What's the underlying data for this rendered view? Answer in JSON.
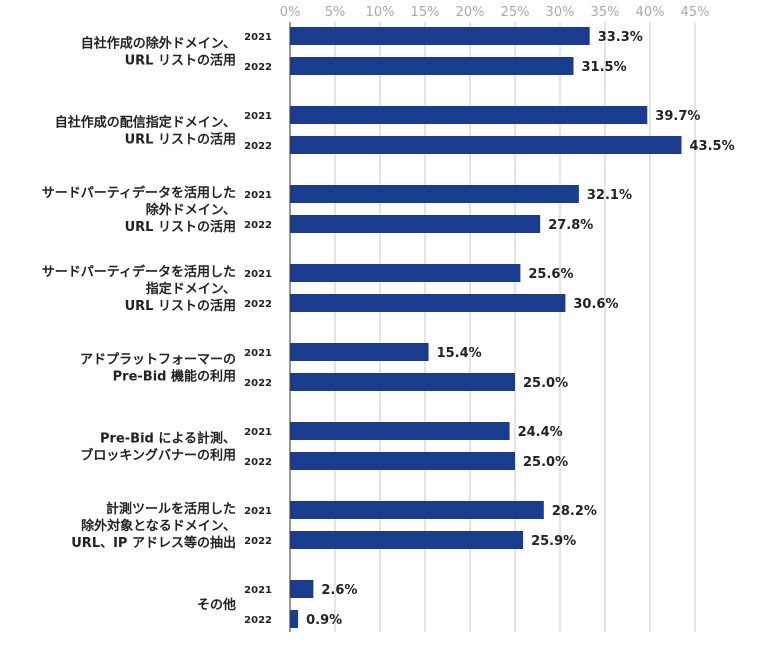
{
  "chart_data": {
    "type": "bar",
    "orientation": "horizontal",
    "title": "",
    "xlabel": "",
    "ylabel": "",
    "xlim": [
      0,
      45
    ],
    "grid": true,
    "bar_color": "#1a3c8f",
    "grid_color": "#c8c8c8",
    "axis_line_color": "#333333",
    "ticks": [
      {
        "value": 0,
        "label": "0%"
      },
      {
        "value": 5,
        "label": "5%"
      },
      {
        "value": 10,
        "label": "10%"
      },
      {
        "value": 15,
        "label": "15%"
      },
      {
        "value": 20,
        "label": "20%"
      },
      {
        "value": 25,
        "label": "25%"
      },
      {
        "value": 30,
        "label": "30%"
      },
      {
        "value": 35,
        "label": "35%"
      },
      {
        "value": 40,
        "label": "40%"
      },
      {
        "value": 45,
        "label": "45%"
      }
    ],
    "series_names": [
      "2021",
      "2022"
    ],
    "categories": [
      {
        "label_lines": [
          "自社作成の除外ドメイン、",
          "URL リストの活用"
        ],
        "bars": [
          {
            "year": "2021",
            "value": 33.3,
            "label": "33.3%"
          },
          {
            "year": "2022",
            "value": 31.5,
            "label": "31.5%"
          }
        ]
      },
      {
        "label_lines": [
          "自社作成の配信指定ドメイン、",
          "URL リストの活用"
        ],
        "bars": [
          {
            "year": "2021",
            "value": 39.7,
            "label": "39.7%"
          },
          {
            "year": "2022",
            "value": 43.5,
            "label": "43.5%"
          }
        ]
      },
      {
        "label_lines": [
          "サードパーティデータを活用した",
          "除外ドメイン、",
          "URL リストの活用"
        ],
        "bars": [
          {
            "year": "2021",
            "value": 32.1,
            "label": "32.1%"
          },
          {
            "year": "2022",
            "value": 27.8,
            "label": "27.8%"
          }
        ]
      },
      {
        "label_lines": [
          "サードパーティデータを活用した",
          "指定ドメイン、",
          "URL リストの活用"
        ],
        "bars": [
          {
            "year": "2021",
            "value": 25.6,
            "label": "25.6%"
          },
          {
            "year": "2022",
            "value": 30.6,
            "label": "30.6%"
          }
        ]
      },
      {
        "label_lines": [
          "アドプラットフォーマーの",
          "Pre-Bid 機能の利用"
        ],
        "bars": [
          {
            "year": "2021",
            "value": 15.4,
            "label": "15.4%"
          },
          {
            "year": "2022",
            "value": 25.0,
            "label": "25.0%"
          }
        ]
      },
      {
        "label_lines": [
          "Pre-Bid による計測、",
          "ブロッキングバナーの利用"
        ],
        "bars": [
          {
            "year": "2021",
            "value": 24.4,
            "label": "24.4%"
          },
          {
            "year": "2022",
            "value": 25.0,
            "label": "25.0%"
          }
        ]
      },
      {
        "label_lines": [
          "計測ツールを活用した",
          "除外対象となるドメイン、",
          "URL、IP アドレス等の抽出"
        ],
        "bars": [
          {
            "year": "2021",
            "value": 28.2,
            "label": "28.2%"
          },
          {
            "year": "2022",
            "value": 25.9,
            "label": "25.9%"
          }
        ]
      },
      {
        "label_lines": [
          "その他"
        ],
        "bars": [
          {
            "year": "2021",
            "value": 2.6,
            "label": "2.6%"
          },
          {
            "year": "2022",
            "value": 0.9,
            "label": "0.9%"
          }
        ]
      }
    ]
  }
}
